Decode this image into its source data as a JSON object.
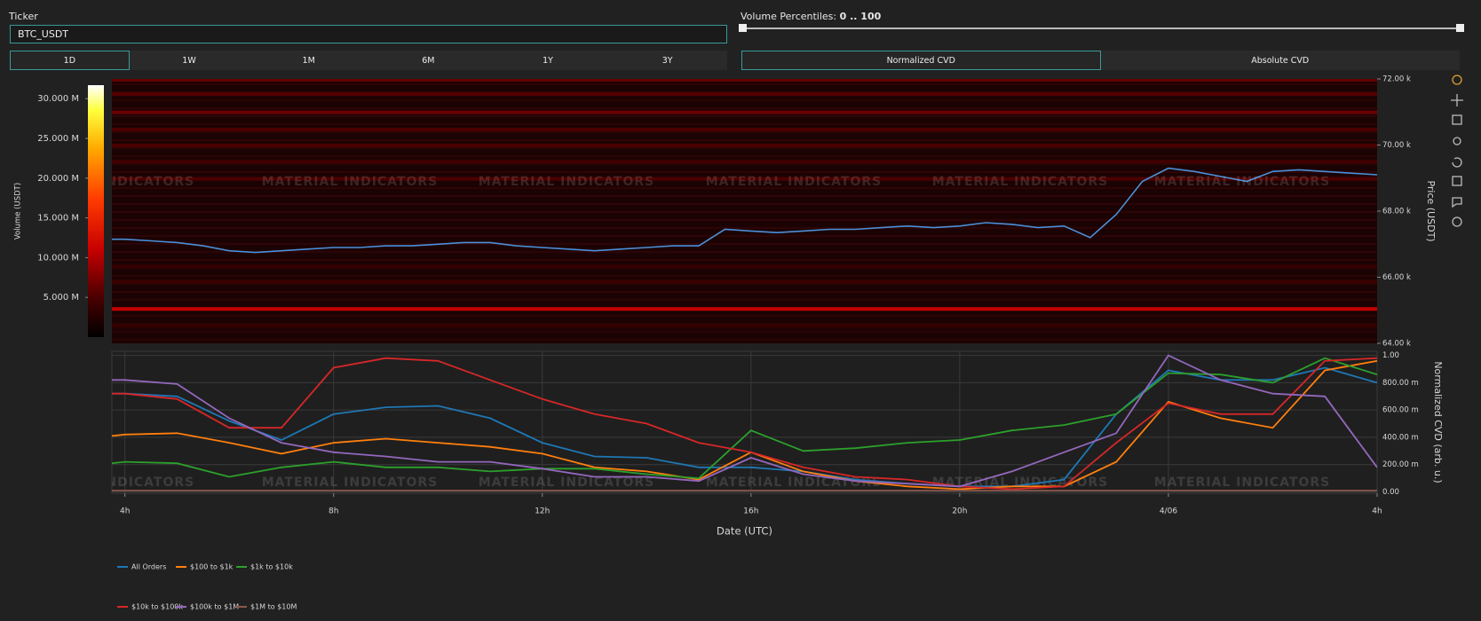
{
  "controls": {
    "ticker_label": "Ticker",
    "ticker_value": "BTC_USDT",
    "percentiles_label": "Volume Percentiles:",
    "percentiles_value": "0 .. 100",
    "timeframes": [
      "1D",
      "1W",
      "1M",
      "6M",
      "1Y",
      "3Y"
    ],
    "cvd_modes": [
      "Normalized CVD",
      "Absolute CVD"
    ]
  },
  "watermark": "MATERIAL INDICATORS",
  "chart_data": [
    {
      "type": "heatmap",
      "colorbar_title": "Volume (USDT)",
      "clim": [
        0,
        31700000
      ],
      "cticks": [
        {
          "value": 5000000,
          "label": "5.000 M"
        },
        {
          "value": 10000000,
          "label": "10.000 M"
        },
        {
          "value": 15000000,
          "label": "15.000 M"
        },
        {
          "value": 20000000,
          "label": "20.000 M"
        },
        {
          "value": 25000000,
          "label": "25.000 M"
        },
        {
          "value": 30000000,
          "label": "30.000 M"
        }
      ],
      "levels": [
        71970,
        71540,
        70990,
        70470,
        69990,
        69500,
        68980,
        66330,
        65870,
        65040,
        64520
      ],
      "level_volumes": [
        6000000,
        5500000,
        6500000,
        5000000,
        5000000,
        4500000,
        5000000,
        3500000,
        4000000,
        11000000,
        3500000
      ],
      "xlim": [
        3.75,
        28
      ],
      "x": [
        3.75,
        4,
        4.5,
        5,
        5.5,
        6,
        6.5,
        7,
        7.5,
        8,
        8.5,
        9,
        9.5,
        10,
        10.5,
        11,
        11.5,
        12,
        12.5,
        13,
        13.5,
        14,
        14.5,
        15,
        15.5,
        16,
        16.5,
        17,
        17.5,
        18,
        18.5,
        19,
        19.5,
        20,
        20.5,
        21,
        21.5,
        22,
        22.5,
        23,
        23.5,
        24,
        24.5,
        25,
        25.5,
        26,
        26.5,
        27,
        27.5,
        28
      ],
      "price": [
        67150,
        67150,
        67100,
        67050,
        66950,
        66800,
        66750,
        66800,
        66850,
        66900,
        66900,
        66950,
        66950,
        67000,
        67050,
        67050,
        66950,
        66900,
        66850,
        66800,
        66850,
        66900,
        66950,
        66950,
        67450,
        67400,
        67350,
        67400,
        67450,
        67450,
        67500,
        67550,
        67500,
        67550,
        67650,
        67600,
        67500,
        67550,
        67200,
        67900,
        68900,
        69300,
        69200,
        69050,
        68900,
        69200,
        69250,
        69200,
        69150,
        69100
      ],
      "price_color": "#4a90d9",
      "y2label": "Price (USDT)",
      "y2lim": [
        64000,
        72000
      ],
      "y2ticks": [
        {
          "value": 64000,
          "label": "64.00 k"
        },
        {
          "value": 66000,
          "label": "66.00 k"
        },
        {
          "value": 68000,
          "label": "68.00 k"
        },
        {
          "value": 70000,
          "label": "70.00 k"
        },
        {
          "value": 72000,
          "label": "72.00 k"
        }
      ]
    },
    {
      "type": "line",
      "xlabel": "Date (UTC)",
      "y2label": "Normalized CVD (arb. u.)",
      "grid": true,
      "legend": "bottom-left",
      "xlim": [
        3.75,
        28
      ],
      "xticks": [
        {
          "value": 4,
          "label": "4h"
        },
        {
          "value": 8,
          "label": "8h"
        },
        {
          "value": 12,
          "label": "12h"
        },
        {
          "value": 16,
          "label": "16h"
        },
        {
          "value": 20,
          "label": "20h"
        },
        {
          "value": 24,
          "label": "4/06"
        },
        {
          "value": 28,
          "label": "4h"
        }
      ],
      "y2lim": [
        -0.01,
        1.03
      ],
      "y2ticks": [
        {
          "value": 0,
          "label": "0.00"
        },
        {
          "value": 0.2,
          "label": "200.00 m"
        },
        {
          "value": 0.4,
          "label": "400.00 m"
        },
        {
          "value": 0.6,
          "label": "600.00 m"
        },
        {
          "value": 0.8,
          "label": "800.00 m"
        },
        {
          "value": 1,
          "label": "1.00"
        }
      ],
      "x": [
        3.75,
        4,
        5,
        6,
        7,
        8,
        9,
        10,
        11,
        12,
        13,
        14,
        15,
        16,
        17,
        18,
        19,
        20,
        21,
        22,
        23,
        24,
        25,
        26,
        27,
        28
      ],
      "series": [
        {
          "name": "All Orders",
          "color": "#1f77b4",
          "axis": "y2",
          "values": [
            0.72,
            0.72,
            0.7,
            0.52,
            0.38,
            0.57,
            0.62,
            0.63,
            0.54,
            0.36,
            0.26,
            0.25,
            0.18,
            0.18,
            0.15,
            0.09,
            0.06,
            0.04,
            0.04,
            0.09,
            0.57,
            0.89,
            0.82,
            0.82,
            0.91,
            0.8
          ]
        },
        {
          "name": "$100 to $1k",
          "color": "#ff7f0e",
          "axis": "y2",
          "values": [
            0.41,
            0.42,
            0.43,
            0.36,
            0.28,
            0.36,
            0.39,
            0.36,
            0.33,
            0.28,
            0.18,
            0.15,
            0.09,
            0.29,
            0.15,
            0.08,
            0.04,
            0.02,
            0.04,
            0.04,
            0.22,
            0.66,
            0.54,
            0.47,
            0.89,
            0.96
          ]
        },
        {
          "name": "$1k to $10k",
          "color": "#2ca02c",
          "axis": "y2",
          "values": [
            0.21,
            0.22,
            0.21,
            0.11,
            0.18,
            0.22,
            0.18,
            0.18,
            0.15,
            0.17,
            0.17,
            0.13,
            0.1,
            0.45,
            0.3,
            0.32,
            0.36,
            0.38,
            0.45,
            0.49,
            0.57,
            0.87,
            0.86,
            0.8,
            0.98,
            0.86
          ]
        },
        {
          "name": "$10k to $100k",
          "color": "#d62728",
          "axis": "y2",
          "values": [
            0.72,
            0.72,
            0.68,
            0.47,
            0.47,
            0.91,
            0.98,
            0.96,
            0.82,
            0.68,
            0.57,
            0.5,
            0.36,
            0.29,
            0.18,
            0.11,
            0.09,
            0.04,
            0.02,
            0.04,
            0.36,
            0.65,
            0.57,
            0.57,
            0.96,
            0.98
          ]
        },
        {
          "name": "$100k to $1M",
          "color": "#9467bd",
          "axis": "y2",
          "values": [
            0.82,
            0.82,
            0.79,
            0.54,
            0.36,
            0.29,
            0.26,
            0.22,
            0.22,
            0.17,
            0.11,
            0.11,
            0.08,
            0.25,
            0.13,
            0.08,
            0.06,
            0.04,
            0.15,
            0.29,
            0.43,
            1.0,
            0.82,
            0.72,
            0.7,
            0.18
          ]
        },
        {
          "name": "$1M to $10M",
          "color": "#8c564b",
          "axis": "y2",
          "values": [
            0.01,
            0.01,
            0.01,
            0.01,
            0.01,
            0.01,
            0.01,
            0.01,
            0.01,
            0.01,
            0.01,
            0.01,
            0.01,
            0.01,
            0.01,
            0.01,
            0.01,
            0.01,
            0.01,
            0.01,
            0.01,
            0.01,
            0.01,
            0.01,
            0.01,
            0.01
          ]
        }
      ]
    }
  ]
}
